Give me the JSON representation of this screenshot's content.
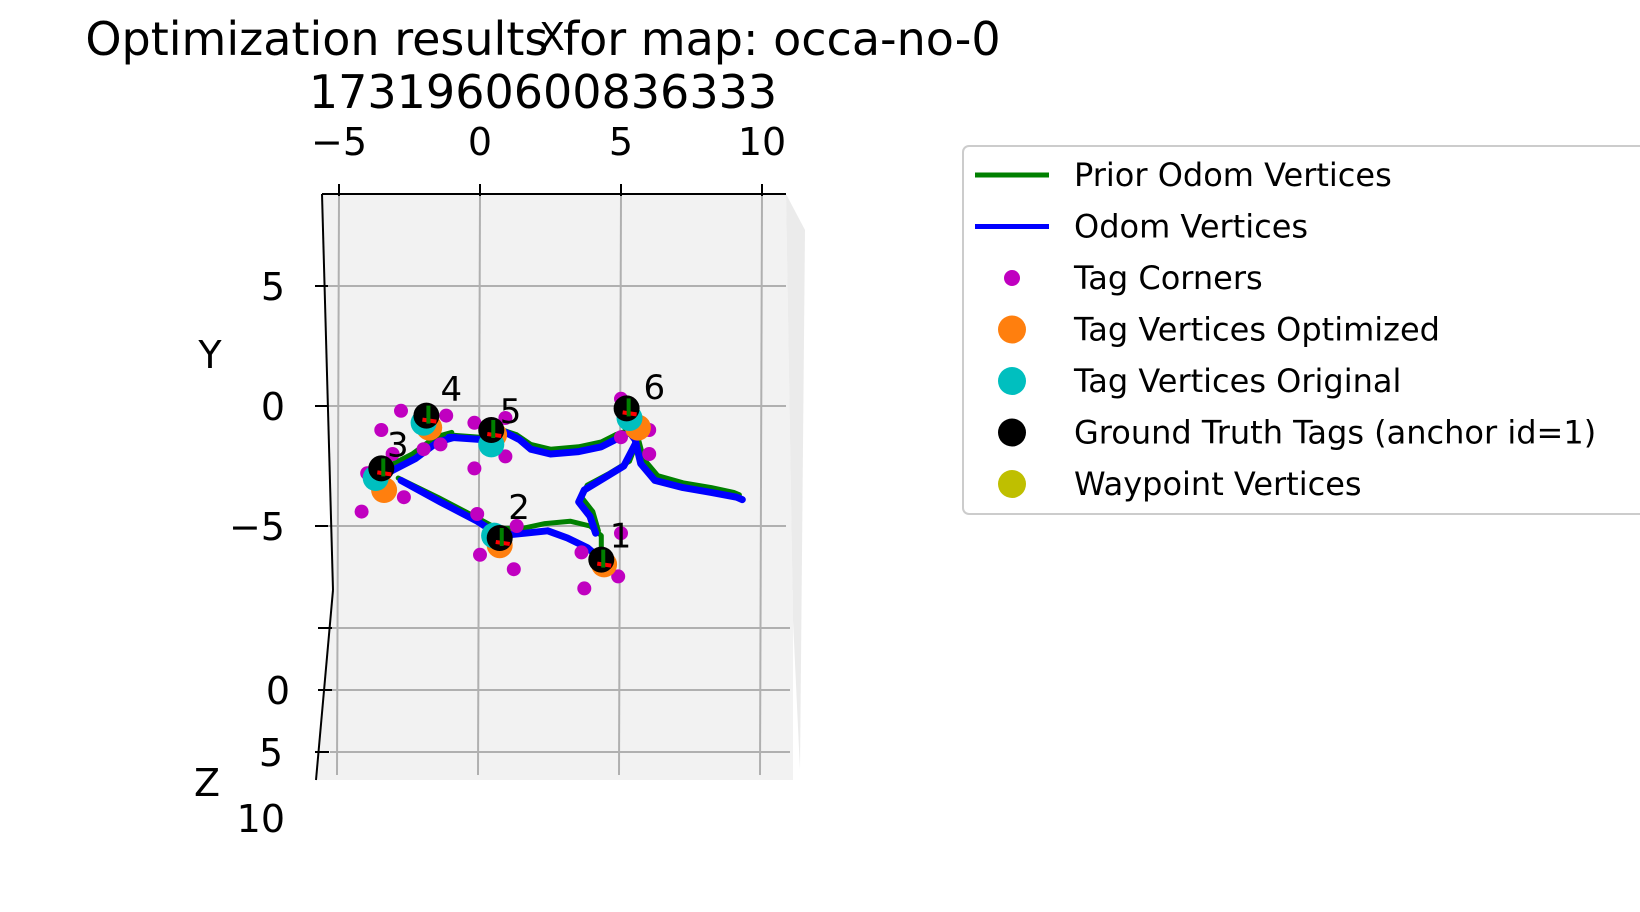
{
  "chart_data": {
    "type": "scatter",
    "projection": "3d",
    "title_line1": "Optimization results for map: occa-no-0",
    "title_line2": "1731960600836333",
    "xlabel": "X",
    "ylabel": "Y",
    "zlabel": "Z",
    "x_ticks": [
      "−5",
      "0",
      "5",
      "10"
    ],
    "y_ticks": [
      "5",
      "0",
      "−5"
    ],
    "z_ticks": [
      "0",
      "5",
      "10"
    ],
    "xlim": [
      -5.5,
      11
    ],
    "ylim": [
      -9.5,
      9.5
    ],
    "grid": true,
    "legend_position": "right",
    "colors": {
      "prior_odom": "#008000",
      "odom": "#0000ff",
      "tag_corners": "#c000c0",
      "tag_optimized": "#ff7f0e",
      "tag_original": "#00bfbf",
      "ground_truth": "#000000",
      "waypoint": "#bfbf00",
      "pane": "#f2f2f2",
      "grid": "#b0b0b0"
    },
    "legend": [
      {
        "label": "Prior Odom Vertices",
        "kind": "line",
        "color": "#008000"
      },
      {
        "label": "Odom Vertices",
        "kind": "line",
        "color": "#0000ff"
      },
      {
        "label": "Tag Corners",
        "kind": "dot-small",
        "color": "#c000c0"
      },
      {
        "label": "Tag Vertices Optimized",
        "kind": "dot",
        "color": "#ff7f0e"
      },
      {
        "label": "Tag Vertices Original",
        "kind": "dot",
        "color": "#00bfbf"
      },
      {
        "label": "Ground Truth Tags (anchor id=1)",
        "kind": "dot",
        "color": "#000000"
      },
      {
        "label": "Waypoint Vertices",
        "kind": "dot",
        "color": "#bfbf00"
      }
    ],
    "series": [
      {
        "name": "Prior Odom Vertices",
        "points": [
          [
            -1.2,
            -1.2
          ],
          [
            0,
            -1.3
          ],
          [
            0.8,
            -1.0
          ],
          [
            1.3,
            -1.2
          ],
          [
            1.8,
            -1.6
          ],
          [
            2.5,
            -1.8
          ],
          [
            3.5,
            -1.7
          ],
          [
            4.3,
            -1.5
          ],
          [
            4.8,
            -1.2
          ],
          [
            5.3,
            -1.0
          ],
          [
            5.6,
            -1.3
          ],
          [
            5.8,
            -2.2
          ],
          [
            6.3,
            -2.9
          ],
          [
            7.2,
            -3.2
          ],
          [
            8.2,
            -3.4
          ],
          [
            9.0,
            -3.6
          ],
          [
            9.2,
            -3.7
          ]
        ]
      },
      {
        "name": "Prior Odom Vertices",
        "points": [
          [
            5.6,
            -1.4
          ],
          [
            5.3,
            -2.3
          ],
          [
            4.6,
            -2.8
          ],
          [
            3.8,
            -3.3
          ],
          [
            3.6,
            -3.8
          ],
          [
            4.0,
            -4.4
          ],
          [
            4.2,
            -5.2
          ]
        ]
      },
      {
        "name": "Prior Odom Vertices",
        "points": [
          [
            -3.4,
            -2.6
          ],
          [
            -2.4,
            -2.0
          ],
          [
            -1.6,
            -1.3
          ],
          [
            -1.0,
            -1.1
          ]
        ]
      },
      {
        "name": "Prior Odom Vertices",
        "points": [
          [
            -2.9,
            -3.0
          ],
          [
            -1.5,
            -3.8
          ],
          [
            -0.2,
            -4.6
          ],
          [
            0.6,
            -5.1
          ],
          [
            1.5,
            -5.1
          ],
          [
            2.3,
            -4.9
          ],
          [
            3.2,
            -4.8
          ],
          [
            3.9,
            -5.0
          ],
          [
            4.3,
            -5.4
          ],
          [
            4.3,
            -6.5
          ]
        ]
      },
      {
        "name": "Prior Odom Vertices",
        "points": [
          [
            -3.5,
            -2.8
          ],
          [
            -3.6,
            -3.0
          ]
        ]
      },
      {
        "name": "Odom Vertices",
        "points": [
          [
            -1.1,
            -1.3
          ],
          [
            0.1,
            -1.4
          ],
          [
            0.9,
            -1.1
          ],
          [
            1.4,
            -1.4
          ],
          [
            1.8,
            -1.8
          ],
          [
            2.5,
            -2.0
          ],
          [
            3.5,
            -1.9
          ],
          [
            4.3,
            -1.7
          ],
          [
            4.8,
            -1.4
          ],
          [
            5.3,
            -1.1
          ],
          [
            5.5,
            -1.4
          ],
          [
            5.7,
            -2.4
          ],
          [
            6.2,
            -3.1
          ],
          [
            7.2,
            -3.4
          ],
          [
            8.2,
            -3.6
          ],
          [
            9.1,
            -3.8
          ],
          [
            9.3,
            -3.9
          ]
        ]
      },
      {
        "name": "Odom Vertices",
        "points": [
          [
            5.5,
            -1.6
          ],
          [
            5.1,
            -2.5
          ],
          [
            4.4,
            -3.0
          ],
          [
            3.7,
            -3.5
          ],
          [
            3.5,
            -4.0
          ],
          [
            3.9,
            -4.6
          ],
          [
            4.1,
            -5.3
          ]
        ]
      },
      {
        "name": "Odom Vertices",
        "points": [
          [
            -3.3,
            -2.8
          ],
          [
            -2.3,
            -2.2
          ],
          [
            -1.5,
            -1.5
          ],
          [
            -0.9,
            -1.3
          ]
        ]
      },
      {
        "name": "Odom Vertices",
        "points": [
          [
            -2.8,
            -3.1
          ],
          [
            -1.4,
            -4.0
          ],
          [
            -0.1,
            -4.8
          ],
          [
            0.7,
            -5.4
          ],
          [
            1.6,
            -5.3
          ],
          [
            2.4,
            -5.2
          ],
          [
            3.1,
            -5.5
          ],
          [
            3.8,
            -5.9
          ],
          [
            4.3,
            -6.4
          ]
        ]
      },
      {
        "name": "Tag Corners",
        "points": [
          [
            -2.8,
            -0.2
          ],
          [
            -1.2,
            -0.4
          ],
          [
            -1.4,
            -1.6
          ],
          [
            -3.1,
            -2.0
          ],
          [
            -3.5,
            -1.0
          ],
          [
            -2.0,
            -1.8
          ],
          [
            -0.2,
            -0.7
          ],
          [
            0.9,
            -0.5
          ],
          [
            0.9,
            -2.1
          ],
          [
            -0.2,
            -2.6
          ],
          [
            -4.0,
            -2.8
          ],
          [
            -4.2,
            -4.4
          ],
          [
            -2.7,
            -3.8
          ],
          [
            -0.1,
            -4.5
          ],
          [
            0.0,
            -6.2
          ],
          [
            1.2,
            -6.8
          ],
          [
            1.3,
            -5.0
          ],
          [
            3.6,
            -6.1
          ],
          [
            5.0,
            -5.3
          ],
          [
            4.9,
            -7.1
          ],
          [
            3.7,
            -7.6
          ],
          [
            5.0,
            0.3
          ],
          [
            6.0,
            -1.0
          ],
          [
            5.0,
            -1.3
          ],
          [
            6.0,
            -2.0
          ]
        ]
      },
      {
        "name": "Tag Vertices Optimized",
        "points": [
          [
            -1.8,
            -0.9
          ],
          [
            0.5,
            -1.2
          ],
          [
            -3.4,
            -3.5
          ],
          [
            0.7,
            -5.8
          ],
          [
            5.6,
            -0.9
          ],
          [
            4.4,
            -6.6
          ]
        ]
      },
      {
        "name": "Tag Vertices Original",
        "points": [
          [
            -2.0,
            -0.7
          ],
          [
            0.4,
            -1.6
          ],
          [
            -3.7,
            -3.0
          ],
          [
            0.5,
            -5.4
          ],
          [
            5.3,
            -0.5
          ]
        ]
      },
      {
        "name": "Ground Truth Tags (anchor id=1)",
        "points": [
          [
            -1.9,
            -0.4
          ],
          [
            0.4,
            -1.0
          ],
          [
            -3.5,
            -2.6
          ],
          [
            0.7,
            -5.5
          ],
          [
            5.2,
            -0.1
          ],
          [
            4.3,
            -6.4
          ]
        ]
      }
    ],
    "tag_labels": [
      {
        "text": "1",
        "x": 4.6,
        "y": -5.9
      },
      {
        "text": "2",
        "x": 1.0,
        "y": -4.7
      },
      {
        "text": "3",
        "x": -3.3,
        "y": -2.1
      },
      {
        "text": "4",
        "x": -1.4,
        "y": 0.2
      },
      {
        "text": "5",
        "x": 0.7,
        "y": -0.7
      },
      {
        "text": "6",
        "x": 5.8,
        "y": 0.3
      }
    ]
  }
}
